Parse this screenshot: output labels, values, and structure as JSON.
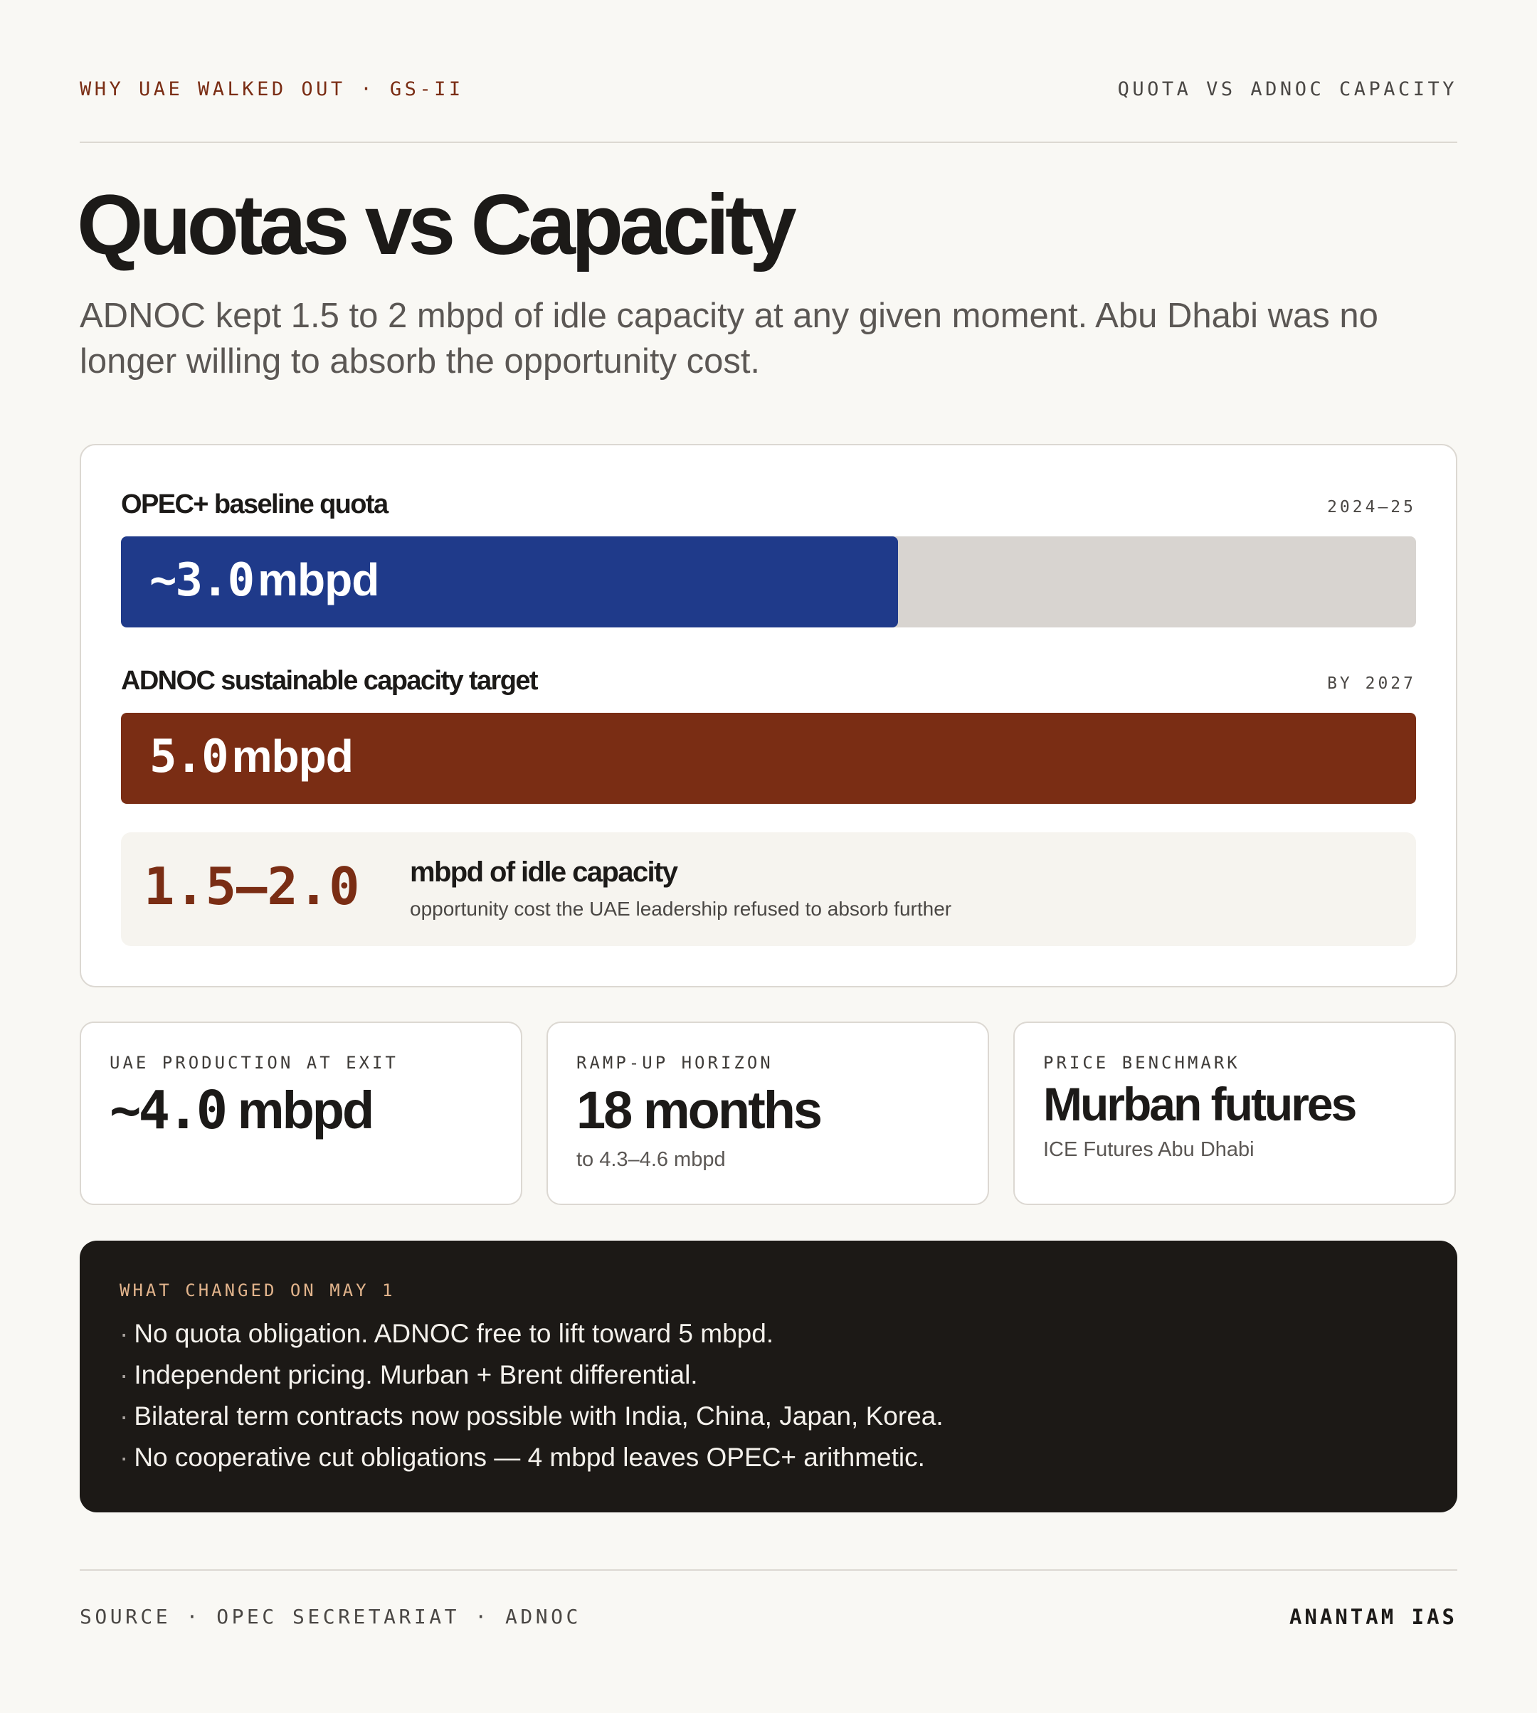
{
  "header": {
    "kicker": "WHY UAE WALKED OUT · GS-II",
    "section": "QUOTA VS ADNOC CAPACITY"
  },
  "title": "Quotas vs Capacity",
  "subtitle": "ADNOC kept 1.5 to 2 mbpd of idle capacity at any given moment. Abu Dhabi was no longer willing to absorb the opportunity cost.",
  "chart_data": {
    "type": "bar",
    "orientation": "horizontal",
    "unit": "mbpd",
    "axis_max": 5.0,
    "bars": [
      {
        "label": "OPEC+ baseline quota",
        "period": "2024–25",
        "value": 3.0,
        "value_prefix": "~",
        "value_text": "3.0",
        "color": "#1f3a8a"
      },
      {
        "label": "ADNOC sustainable capacity target",
        "period": "BY 2027",
        "value": 5.0,
        "value_prefix": "",
        "value_text": "5.0",
        "color": "#7a2d14"
      }
    ],
    "gap": {
      "range_text": "1.5—2.0",
      "title": "mbpd of idle capacity",
      "note": "opportunity cost the UAE leadership refused to absorb further"
    }
  },
  "stats": [
    {
      "label": "UAE PRODUCTION AT EXIT",
      "number": "~4.0",
      "unit": "mbpd",
      "note": ""
    },
    {
      "label": "RAMP-UP HORIZON",
      "number": "18",
      "unit": "months",
      "note": "to 4.3–4.6 mbpd"
    },
    {
      "label": "PRICE BENCHMARK",
      "number": "",
      "unit": "Murban futures",
      "note": "ICE Futures Abu Dhabi"
    }
  ],
  "changes": {
    "label": "WHAT CHANGED ON MAY 1",
    "bullet_glyph": "·",
    "items": [
      "No quota obligation. ADNOC free to lift toward 5 mbpd.",
      "Independent pricing. Murban + Brent differential.",
      "Bilateral term contracts now possible with India, China, Japan, Korea.",
      "No cooperative cut obligations — 4 mbpd leaves OPEC+ arithmetic."
    ]
  },
  "footer": {
    "source": "SOURCE · OPEC SECRETARIAT · ADNOC",
    "brand": "ANANTAM IAS"
  }
}
